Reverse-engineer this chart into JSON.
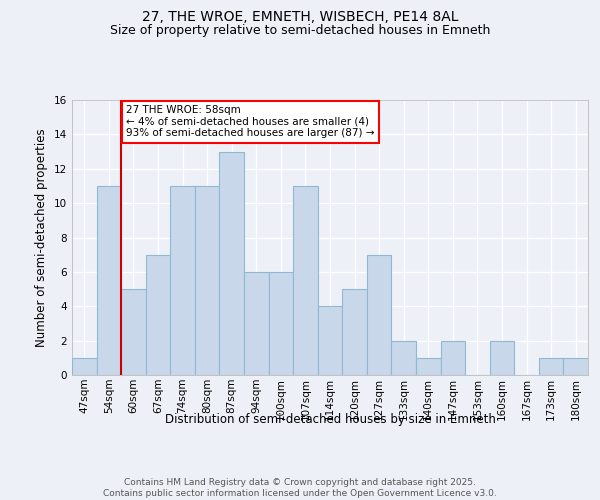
{
  "title_line1": "27, THE WROE, EMNETH, WISBECH, PE14 8AL",
  "title_line2": "Size of property relative to semi-detached houses in Emneth",
  "xlabel": "Distribution of semi-detached houses by size in Emneth",
  "ylabel": "Number of semi-detached properties",
  "categories": [
    "47sqm",
    "54sqm",
    "60sqm",
    "67sqm",
    "74sqm",
    "80sqm",
    "87sqm",
    "94sqm",
    "100sqm",
    "107sqm",
    "114sqm",
    "120sqm",
    "127sqm",
    "133sqm",
    "140sqm",
    "147sqm",
    "153sqm",
    "160sqm",
    "167sqm",
    "173sqm",
    "180sqm"
  ],
  "values": [
    1,
    11,
    5,
    7,
    11,
    11,
    13,
    6,
    6,
    11,
    4,
    5,
    7,
    2,
    1,
    2,
    0,
    2,
    0,
    1,
    1
  ],
  "bar_color": "#c8d8ea",
  "bar_edge_color": "#90b8d0",
  "vline_color": "#cc0000",
  "vline_x": 1.5,
  "annotation_text": "27 THE WROE: 58sqm\n← 4% of semi-detached houses are smaller (4)\n93% of semi-detached houses are larger (87) →",
  "ylim": [
    0,
    16
  ],
  "yticks": [
    0,
    2,
    4,
    6,
    8,
    10,
    12,
    14,
    16
  ],
  "bg_color": "#edf1f7",
  "title_fontsize": 10,
  "subtitle_fontsize": 9,
  "axis_label_fontsize": 8.5,
  "tick_fontsize": 7.5,
  "annotation_fontsize": 7.5,
  "footer_text": "Contains HM Land Registry data © Crown copyright and database right 2025.\nContains public sector information licensed under the Open Government Licence v3.0.",
  "footer_fontsize": 6.5
}
